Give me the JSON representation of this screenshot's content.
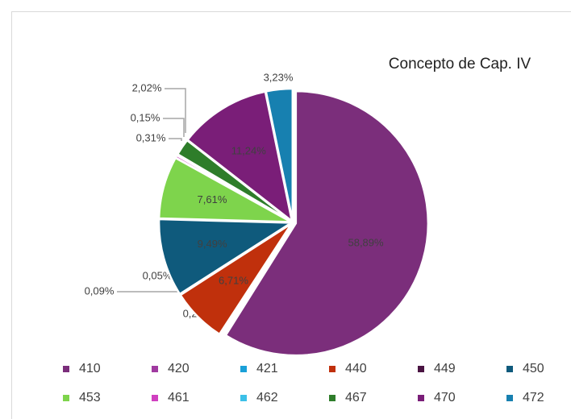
{
  "chart_data": {
    "type": "pie",
    "title": "Concepto de Cap. IV",
    "categories": [
      "410",
      "420",
      "421",
      "440",
      "449",
      "450",
      "453",
      "461",
      "462",
      "467",
      "470",
      "472"
    ],
    "values": [
      58.89,
      0.2,
      0.09,
      6.71,
      0.05,
      9.49,
      7.61,
      0.31,
      0.15,
      2.02,
      11.24,
      3.23
    ],
    "value_labels": [
      "58,89%",
      "0,20%",
      "0,09%",
      "6,71%",
      "0,05%",
      "9,49%",
      "7,61%",
      "0,31%",
      "0,15%",
      "2,02%",
      "11,24%",
      "3,23%"
    ],
    "colors": [
      "#7b2e7b",
      "#a03aa0",
      "#1aa0d8",
      "#c0300c",
      "#4a1442",
      "#0f5a7c",
      "#7ed44c",
      "#d040c0",
      "#3cc0e8",
      "#2e7d2a",
      "#7a1e78",
      "#1780b0"
    ],
    "legend": "bottom"
  }
}
